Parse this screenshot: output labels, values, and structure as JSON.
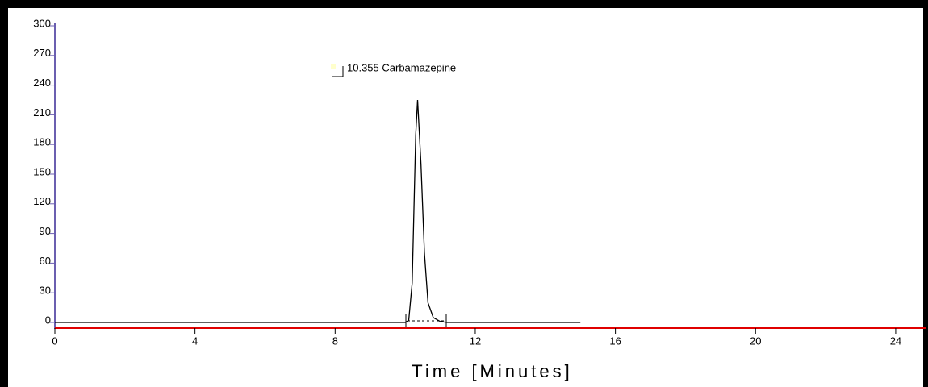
{
  "chart_data": {
    "type": "line",
    "x_label": "Time [Minutes]",
    "annotation": "10.355  Carbamazepine",
    "x": [
      0,
      10.0,
      10.1,
      10.2,
      10.3,
      10.355,
      10.45,
      10.55,
      10.65,
      10.8,
      11.0,
      11.2,
      15
    ],
    "values": [
      0,
      0,
      2,
      40,
      190,
      225,
      160,
      70,
      20,
      5,
      1,
      0,
      0
    ],
    "color": "#000000",
    "xlim": [
      0,
      24.9
    ],
    "xticks": [
      0,
      4,
      8,
      12,
      16,
      20,
      24
    ],
    "ylim": [
      0,
      300
    ],
    "yticks": [
      0,
      30,
      60,
      90,
      120,
      150,
      180,
      210,
      240,
      270,
      300
    ],
    "x_axis_color": "#e00000",
    "y_axis_color": "#6b5fb0"
  }
}
